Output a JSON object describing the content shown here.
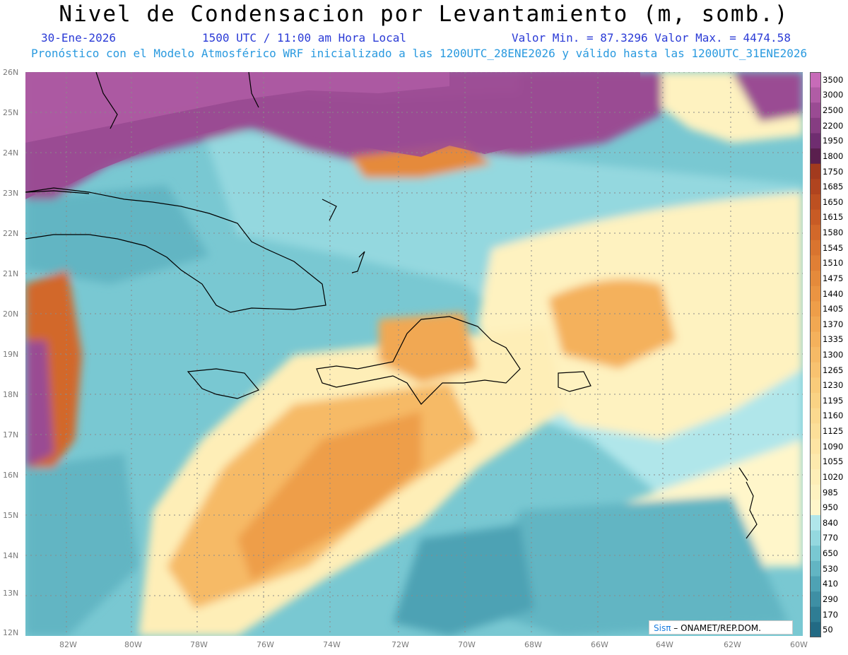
{
  "header": {
    "title": "Nivel de Condensacion por Levantamiento (m, somb.)",
    "date": "30-Ene-2026",
    "time": "1500 UTC / 11:00 am Hora Local",
    "min_max": "Valor Min. = 87.3296  Valor Max. = 4474.58",
    "forecast": "Pronóstico con el Modelo Atmosférico WRF inicializado a las 1200UTC_28ENE2026 y válido hasta las  1200UTC_31ENE2026"
  },
  "axes": {
    "lat_labels": [
      "26N",
      "25N",
      "24N",
      "23N",
      "22N",
      "21N",
      "20N",
      "19N",
      "18N",
      "17N",
      "16N",
      "15N",
      "14N",
      "13N",
      "12N"
    ],
    "lon_labels": [
      "82W",
      "80W",
      "78W",
      "76W",
      "74W",
      "72W",
      "70W",
      "68W",
      "66W",
      "64W",
      "62W",
      "60W"
    ]
  },
  "colorbar": {
    "levels": [
      "3500",
      "3000",
      "2500",
      "2200",
      "1950",
      "1800",
      "1750",
      "1685",
      "1650",
      "1615",
      "1580",
      "1545",
      "1510",
      "1475",
      "1440",
      "1405",
      "1370",
      "1335",
      "1300",
      "1265",
      "1230",
      "1195",
      "1160",
      "1125",
      "1090",
      "1055",
      "1020",
      "985",
      "950",
      "840",
      "770",
      "650",
      "530",
      "410",
      "290",
      "170",
      "50"
    ],
    "colors": [
      "#c76bb8",
      "#b05ca5",
      "#9a4b93",
      "#863d82",
      "#6f2d70",
      "#5a1f4e",
      "#a23a1e",
      "#b0441f",
      "#bd5021",
      "#c85b25",
      "#d2682a",
      "#d9742f",
      "#e07f35",
      "#e58a3b",
      "#ea9442",
      "#ee9e49",
      "#f1a852",
      "#f4b15c",
      "#f6ba66",
      "#f8c270",
      "#f9cb7a",
      "#fad284",
      "#fbd98f",
      "#fcdf99",
      "#fde4a3",
      "#fde9ad",
      "#feeeb7",
      "#fef2c0",
      "#fff6ca",
      "#b0e6ea",
      "#94d8df",
      "#79c8d2",
      "#62b5c3",
      "#4ea2b4",
      "#3e8fa4",
      "#2f7d94",
      "#226a84"
    ]
  },
  "credit": {
    "logo": "Sisπ",
    "text": "– ONAMET/REP.DOM."
  }
}
